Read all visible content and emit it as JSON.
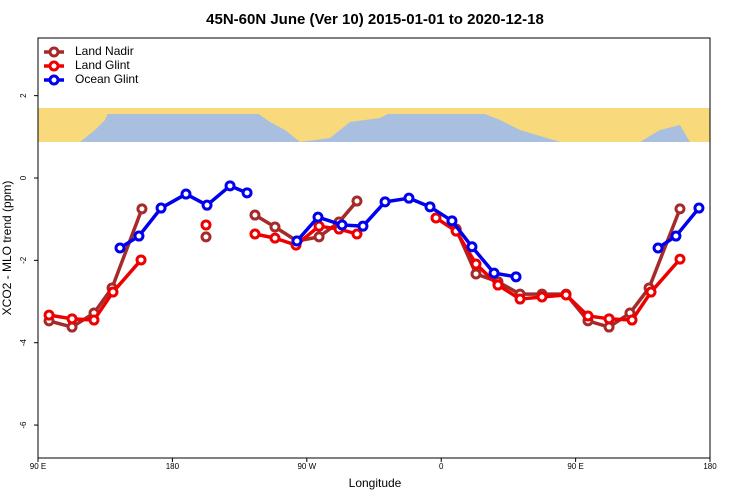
{
  "chart_data": {
    "type": "line",
    "title": "45N-60N June (Ver 10)   2015-01-01 to 2020-12-18",
    "x_label": "Longitude",
    "y_label": "XCO2 - MLO trend (ppm)",
    "xlim": [
      90,
      540
    ],
    "xticks": [
      {
        "value": 90,
        "label": "90 E"
      },
      180,
      {
        "value": 270,
        "label": "90 W"
      },
      {
        "value": 360,
        "label": "0"
      },
      {
        "value": 450,
        "label": "90 E"
      },
      {
        "value": 540,
        "label": "180"
      }
    ],
    "ylim": [
      -6.8,
      3.4
    ],
    "yticks": [
      -6,
      -4,
      -2,
      0,
      2
    ],
    "legend": "top-left",
    "series": [
      {
        "name": "Land Nadir",
        "color": "#a52a2a",
        "x": [
          97.4,
          112.8,
          127.5,
          139.6,
          159.6,
          null,
          202.5,
          null,
          235.3,
          248.7,
          263.4,
          278.2,
          291.6,
          303.6,
          null,
          370,
          383.3,
          398,
          412.8,
          427.5,
          443.6,
          458.3,
          472.4,
          486.4,
          499.2,
          519.9
        ],
        "values": [
          -3.47,
          -3.62,
          -3.28,
          -2.67,
          -0.75,
          null,
          -1.43,
          null,
          -0.9,
          -1.19,
          -1.53,
          -1.43,
          -1.07,
          -0.56,
          null,
          -1.24,
          -2.33,
          -2.52,
          -2.82,
          -2.82,
          -2.82,
          -3.47,
          -3.62,
          -3.28,
          -2.67,
          -0.75
        ]
      },
      {
        "name": "Land Glint",
        "color": "#ee0000",
        "x": [
          97.4,
          112.8,
          127.5,
          140.2,
          159,
          null,
          202.5,
          null,
          235.3,
          248.7,
          262.8,
          278.2,
          291.6,
          303.6,
          null,
          356.5,
          370,
          383.3,
          398,
          412.8,
          427.5,
          443.6,
          458.3,
          472.4,
          487.8,
          500.5,
          519.9
        ],
        "values": [
          -3.33,
          -3.42,
          -3.45,
          -2.77,
          -1.99,
          null,
          -1.14,
          null,
          -1.36,
          -1.46,
          -1.63,
          -1.17,
          -1.24,
          -1.36,
          null,
          -0.97,
          -1.29,
          -2.09,
          -2.6,
          -2.94,
          -2.89,
          -2.84,
          -3.35,
          -3.42,
          -3.45,
          -2.77,
          -1.97
        ]
      },
      {
        "name": "Ocean Glint",
        "color": "#0000ee",
        "x": [
          144.9,
          157.6,
          172.4,
          189.1,
          203.2,
          218.6,
          230,
          null,
          263.4,
          277.5,
          293.6,
          307.6,
          322.4,
          338.4,
          352.5,
          367.2,
          380.6,
          395.4,
          410.1,
          null,
          505.2,
          517.2,
          532.6
        ],
        "values": [
          -1.7,
          -1.41,
          -0.73,
          -0.39,
          -0.66,
          -0.19,
          -0.36,
          null,
          -1.53,
          -0.95,
          -1.14,
          -1.17,
          -0.58,
          -0.49,
          -0.7,
          -1.04,
          -1.67,
          -2.31,
          -2.4,
          null,
          -1.7,
          -1.41,
          -0.73
        ]
      }
    ]
  }
}
